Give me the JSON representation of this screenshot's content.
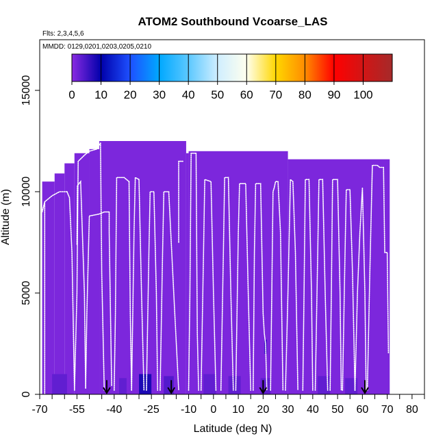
{
  "chart_data": {
    "type": "heatmap",
    "title": "ATOM2 Southbound Vcoarse_LAS",
    "flights_note": "Flts: 2,3,4,5,6",
    "dates_note": "MMDD: 0129,0201,0203,0205,0210",
    "xlabel": "Latitude (deg N)",
    "ylabel": "Altitude (m)",
    "xlim": [
      -70,
      85
    ],
    "ylim": [
      0,
      17500
    ],
    "x_tick_labels": [
      "-70",
      "-55",
      "-40",
      "-25",
      "-10",
      "0",
      "10",
      "20",
      "30",
      "40",
      "50",
      "60",
      "70",
      "80"
    ],
    "x_tick_values": [
      -70,
      -55,
      -40,
      -25,
      -10,
      0,
      10,
      20,
      30,
      40,
      50,
      60,
      70,
      80
    ],
    "x_minor_ticks": [
      -65,
      -60,
      -50,
      -45,
      -35,
      -30,
      -20,
      -15,
      -5,
      5,
      15,
      25,
      35,
      45,
      55,
      65,
      75,
      85
    ],
    "y_tick_labels": [
      "0",
      "5000",
      "10000",
      "15000"
    ],
    "y_tick_values": [
      0,
      5000,
      10000,
      15000
    ],
    "colorbar": {
      "min": 0,
      "max": 110,
      "tick_labels": [
        "0",
        "10",
        "20",
        "30",
        "40",
        "50",
        "60",
        "70",
        "80",
        "90",
        "100"
      ],
      "tick_values": [
        0,
        10,
        20,
        30,
        40,
        50,
        60,
        70,
        80,
        90,
        100
      ],
      "stops": [
        {
          "value": 0,
          "color": "#8a2be2"
        },
        {
          "value": 10,
          "color": "#0000aa"
        },
        {
          "value": 20,
          "color": "#1e50ff"
        },
        {
          "value": 30,
          "color": "#00a8ff"
        },
        {
          "value": 40,
          "color": "#5cc8ff"
        },
        {
          "value": 50,
          "color": "#cfeeff"
        },
        {
          "value": 60,
          "color": "#ffffee"
        },
        {
          "value": 70,
          "color": "#ffd700"
        },
        {
          "value": 80,
          "color": "#ff8c00"
        },
        {
          "value": 90,
          "color": "#ff0000"
        },
        {
          "value": 110,
          "color": "#a52a2a"
        }
      ]
    },
    "cells": [
      {
        "lat0": -69,
        "lat1": -64,
        "alt0": 0,
        "alt1": 10500,
        "value": 1
      },
      {
        "lat0": -64,
        "lat1": -60,
        "alt0": 0,
        "alt1": 10900,
        "value": 1
      },
      {
        "lat0": -60,
        "lat1": -56,
        "alt0": 0,
        "alt1": 11400,
        "value": 1
      },
      {
        "lat0": -56,
        "lat1": -50,
        "alt0": 0,
        "alt1": 11900,
        "value": 1
      },
      {
        "lat0": -50,
        "lat1": -46,
        "alt0": 0,
        "alt1": 12100,
        "value": 1
      },
      {
        "lat0": -46,
        "lat1": -11,
        "alt0": 0,
        "alt1": 12500,
        "value": 1
      },
      {
        "lat0": -11,
        "lat1": -10,
        "alt0": 0,
        "alt1": 11900,
        "value": 1
      },
      {
        "lat0": -10,
        "lat1": 30,
        "alt0": 0,
        "alt1": 12000,
        "value": 1
      },
      {
        "lat0": 30,
        "lat1": 71,
        "alt0": 0,
        "alt1": 11600,
        "value": 1
      },
      {
        "lat0": -65,
        "lat1": -59,
        "alt0": 0,
        "alt1": 1000,
        "value": 3
      },
      {
        "lat0": -38,
        "lat1": -35,
        "alt0": 0,
        "alt1": 800,
        "value": 3
      },
      {
        "lat0": -30,
        "lat1": -25,
        "alt0": 0,
        "alt1": 1000,
        "value": 8
      },
      {
        "lat0": -20,
        "lat1": -16,
        "alt0": 0,
        "alt1": 900,
        "value": 4
      },
      {
        "lat0": -4,
        "lat1": 1,
        "alt0": 0,
        "alt1": 1000,
        "value": 3
      },
      {
        "lat0": 6,
        "lat1": 11,
        "alt0": 0,
        "alt1": 900,
        "value": 3
      },
      {
        "lat0": 19,
        "lat1": 23,
        "alt0": 0,
        "alt1": 800,
        "value": 3
      },
      {
        "lat0": 42,
        "lat1": 47,
        "alt0": 0,
        "alt1": 900,
        "value": 3
      },
      {
        "lat0": 53,
        "lat1": 58,
        "alt0": 0,
        "alt1": 800,
        "value": 3
      },
      {
        "lat0": 20.5,
        "lat1": 21.5,
        "alt0": 2000,
        "alt1": 2700,
        "value": 6
      }
    ],
    "flight_tracks": [
      [
        [
          -69,
          9000
        ],
        [
          -68,
          9500
        ],
        [
          -65,
          9800
        ],
        [
          -62,
          10000
        ],
        [
          -59,
          10000
        ]
      ],
      [
        [
          -68,
          9500
        ],
        [
          -68,
          0
        ]
      ],
      [
        [
          -59,
          10000
        ],
        [
          -58,
          9700
        ],
        [
          -57,
          7000
        ],
        [
          -56,
          200
        ]
      ],
      [
        [
          -56,
          200
        ],
        [
          -55,
          5000
        ],
        [
          -54.5,
          11500
        ],
        [
          -52,
          11800
        ],
        [
          -50,
          12000
        ],
        [
          -47,
          12100
        ],
        [
          -45.5,
          12400
        ]
      ],
      [
        [
          -45.5,
          12400
        ],
        [
          -45,
          6000
        ],
        [
          -44,
          200
        ]
      ],
      [
        [
          -55,
          7400
        ],
        [
          -54.8,
          10300
        ],
        [
          -53.5,
          10500
        ],
        [
          -52,
          5000
        ],
        [
          -51.5,
          300
        ]
      ],
      [
        [
          -51.5,
          300
        ],
        [
          -51,
          4000
        ],
        [
          -50,
          8800
        ],
        [
          -46,
          8900
        ],
        [
          -44,
          9000
        ],
        [
          -42,
          9000
        ]
      ],
      [
        [
          -42,
          9000
        ],
        [
          -42,
          8000
        ],
        [
          -41,
          400
        ]
      ],
      [
        [
          -40,
          200
        ],
        [
          -39.5,
          4000
        ],
        [
          -39,
          10700
        ],
        [
          -36,
          10700
        ],
        [
          -34,
          10500
        ]
      ],
      [
        [
          -34,
          10500
        ],
        [
          -33.5,
          4000
        ],
        [
          -33,
          200
        ]
      ],
      [
        [
          -33,
          200
        ],
        [
          -32,
          8000
        ],
        [
          -31.5,
          10700
        ],
        [
          -30,
          10600
        ]
      ],
      [
        [
          -30,
          10600
        ],
        [
          -29,
          5000
        ],
        [
          -28,
          200
        ]
      ],
      [
        [
          -27,
          200
        ],
        [
          -26,
          7000
        ],
        [
          -25.5,
          10000
        ],
        [
          -24,
          10000
        ],
        [
          -23,
          5000
        ],
        [
          -22.5,
          200
        ]
      ],
      [
        [
          -21.5,
          200
        ],
        [
          -20.5,
          7000
        ],
        [
          -20,
          10000
        ],
        [
          -18,
          10000
        ]
      ],
      [
        [
          -18,
          10000
        ],
        [
          -16,
          5000
        ],
        [
          -14,
          200
        ]
      ],
      [
        [
          -14,
          7500
        ],
        [
          -14,
          11500
        ],
        [
          -12,
          11500
        ]
      ],
      [
        [
          -10,
          200
        ],
        [
          -9.5,
          5000
        ],
        [
          -9,
          11900
        ],
        [
          -7,
          11900
        ]
      ],
      [
        [
          -7,
          11900
        ],
        [
          -6.5,
          3000
        ],
        [
          -6,
          200
        ]
      ],
      [
        [
          -5,
          200
        ],
        [
          -4,
          7000
        ],
        [
          -3.5,
          10600
        ],
        [
          -1,
          10500
        ],
        [
          0,
          5000
        ],
        [
          1,
          200
        ]
      ],
      [
        [
          3,
          200
        ],
        [
          4,
          7000
        ],
        [
          4.5,
          10700
        ],
        [
          6,
          10700
        ],
        [
          7,
          5000
        ],
        [
          8,
          200
        ]
      ],
      [
        [
          9,
          200
        ],
        [
          10,
          8000
        ],
        [
          10.5,
          10400
        ],
        [
          13,
          10400
        ],
        [
          14,
          5000
        ],
        [
          15,
          200
        ]
      ],
      [
        [
          16,
          200
        ],
        [
          16.5,
          7000
        ],
        [
          17,
          10400
        ],
        [
          19,
          10400
        ],
        [
          20,
          4000
        ],
        [
          20.5,
          3000
        ],
        [
          21,
          2500
        ],
        [
          21.5,
          200
        ]
      ],
      [
        [
          23,
          200
        ],
        [
          23.5,
          5000
        ],
        [
          24,
          10000
        ],
        [
          24.5,
          10200
        ],
        [
          25,
          10500
        ],
        [
          26,
          10500
        ],
        [
          27,
          8000
        ],
        [
          28,
          200
        ]
      ],
      [
        [
          29,
          200
        ],
        [
          30,
          5000
        ],
        [
          31,
          10600
        ],
        [
          32,
          10500
        ],
        [
          33,
          7000
        ],
        [
          34,
          200
        ]
      ],
      [
        [
          36,
          200
        ],
        [
          36.5,
          5000
        ],
        [
          37,
          10600
        ],
        [
          38.5,
          10600
        ],
        [
          39.5,
          5000
        ],
        [
          40,
          200
        ]
      ],
      [
        [
          41,
          200
        ],
        [
          42,
          7000
        ],
        [
          42.5,
          10600
        ],
        [
          44,
          10600
        ],
        [
          45,
          5000
        ],
        [
          46,
          200
        ]
      ],
      [
        [
          47,
          200
        ],
        [
          47.5,
          5000
        ],
        [
          48,
          10600
        ],
        [
          50,
          10600
        ],
        [
          51,
          5000
        ],
        [
          51.5,
          200
        ]
      ],
      [
        [
          52,
          200
        ],
        [
          53,
          7000
        ],
        [
          53.5,
          10100
        ],
        [
          55,
          10100
        ],
        [
          56,
          6000
        ],
        [
          57,
          200
        ]
      ],
      [
        [
          57,
          200
        ],
        [
          58,
          5000
        ],
        [
          59,
          8000
        ],
        [
          60,
          10200
        ],
        [
          61,
          5000
        ],
        [
          61.5,
          200
        ]
      ],
      [
        [
          62,
          200
        ],
        [
          63,
          6000
        ],
        [
          64,
          11300
        ],
        [
          66,
          11300
        ],
        [
          67,
          11200
        ],
        [
          68.5,
          11200
        ]
      ],
      [
        [
          68.5,
          11200
        ],
        [
          69,
          7000
        ],
        [
          70,
          7000
        ],
        [
          70.5,
          2000
        ]
      ]
    ],
    "markers": [
      {
        "lat": -43,
        "alt": 700
      },
      {
        "lat": -17,
        "alt": 700
      },
      {
        "lat": 20,
        "alt": 700
      },
      {
        "lat": 61,
        "alt": 700
      }
    ]
  }
}
